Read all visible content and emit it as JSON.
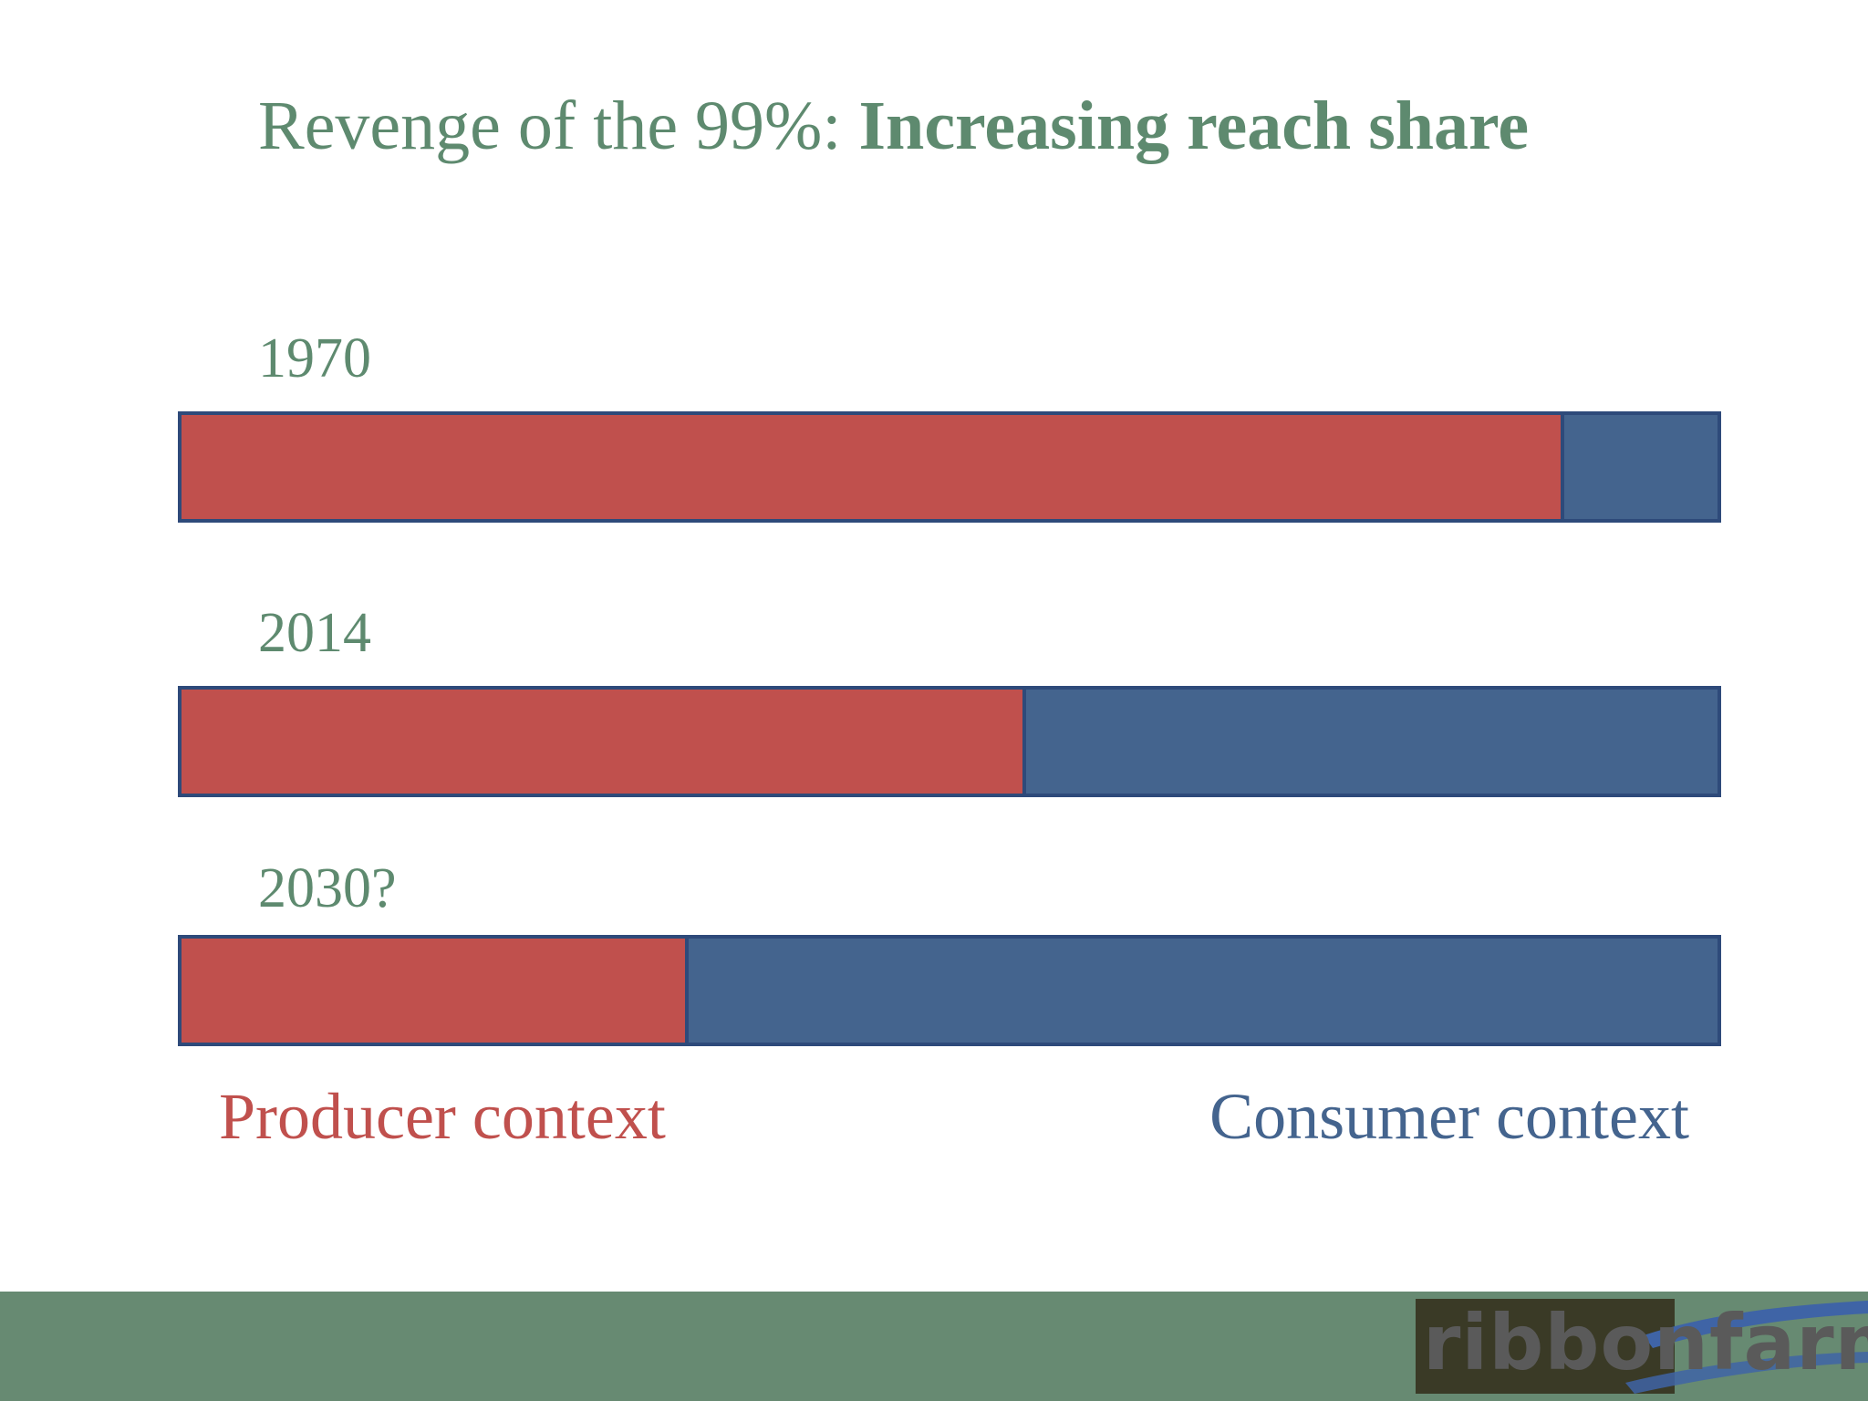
{
  "colors": {
    "title": "#5e8a6f",
    "producer": "#c0504d",
    "consumer": "#44648e",
    "outline": "#2e4a7a",
    "footer": "#678a72"
  },
  "chart_data": {
    "type": "bar",
    "stacked": true,
    "orientation": "horizontal",
    "title": "Revenge of the 99%: Increasing reach share",
    "title_parts": {
      "regular": "Revenge of the 99%: ",
      "bold": "Increasing reach share"
    },
    "categories": [
      "1970",
      "2014",
      "2030?"
    ],
    "series": [
      {
        "name": "Producer context",
        "values": [
          90,
          55,
          33
        ]
      },
      {
        "name": "Consumer context",
        "values": [
          10,
          45,
          67
        ]
      }
    ],
    "xlim": [
      0,
      100
    ],
    "grid": false,
    "legend_placement": "bottom"
  },
  "logo": {
    "text": "ribbonfarm",
    "icon": "swoosh-icon"
  }
}
